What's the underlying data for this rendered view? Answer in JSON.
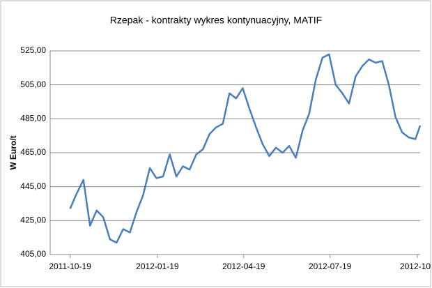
{
  "chart_data": {
    "type": "line",
    "title": "Rzepak - kontrakty wykres kontynuacyjny, MATIF",
    "y_label": "W Euro/t",
    "x": [
      "2011-10-19",
      "2011-10-26",
      "2011-11-02",
      "2011-11-09",
      "2011-11-16",
      "2011-11-23",
      "2011-11-30",
      "2011-12-07",
      "2011-12-14",
      "2011-12-21",
      "2011-12-28",
      "2012-01-04",
      "2012-01-11",
      "2012-01-18",
      "2012-01-25",
      "2012-02-01",
      "2012-02-08",
      "2012-02-15",
      "2012-02-22",
      "2012-02-29",
      "2012-03-07",
      "2012-03-14",
      "2012-03-21",
      "2012-03-28",
      "2012-04-04",
      "2012-04-11",
      "2012-04-18",
      "2012-04-25",
      "2012-05-02",
      "2012-05-09",
      "2012-05-16",
      "2012-05-23",
      "2012-05-30",
      "2012-06-06",
      "2012-06-13",
      "2012-06-20",
      "2012-06-27",
      "2012-07-04",
      "2012-07-11",
      "2012-07-18",
      "2012-07-25",
      "2012-08-01",
      "2012-08-08",
      "2012-08-15",
      "2012-08-22",
      "2012-08-29",
      "2012-09-05",
      "2012-09-12",
      "2012-09-19",
      "2012-09-26",
      "2012-10-03",
      "2012-10-10",
      "2012-10-17",
      "2012-10-22"
    ],
    "series": [
      {
        "color": "#4a7ebb",
        "values": [
          432,
          441,
          449,
          422,
          431,
          427,
          414,
          412,
          420,
          418,
          430,
          440,
          456,
          450,
          451,
          464,
          451,
          457,
          455,
          464,
          467,
          476,
          480,
          482,
          500,
          497,
          503,
          491,
          480,
          470,
          463,
          468,
          465,
          469,
          462,
          478,
          488,
          508,
          521,
          523,
          505,
          500,
          494,
          510,
          516,
          520,
          518,
          519,
          505,
          486,
          477,
          474,
          473,
          481
        ]
      }
    ],
    "xlim": [
      "2011-09-28",
      "2012-10-22"
    ],
    "xticks": [
      "2011-10-19",
      "2012-01-19",
      "2012-04-19",
      "2012-07-19",
      {
        "value": "2012-10-19",
        "label": "2012-10"
      }
    ],
    "ylim": [
      405,
      525
    ],
    "yticks": [
      {
        "value": 405,
        "label": "405,00"
      },
      {
        "value": 425,
        "label": "425,00"
      },
      {
        "value": 445,
        "label": "445,00"
      },
      {
        "value": 465,
        "label": "465,00"
      },
      {
        "value": 485,
        "label": "485,00"
      },
      {
        "value": 505,
        "label": "505,00"
      },
      {
        "value": 525,
        "label": "525,00"
      }
    ],
    "grid": true
  }
}
